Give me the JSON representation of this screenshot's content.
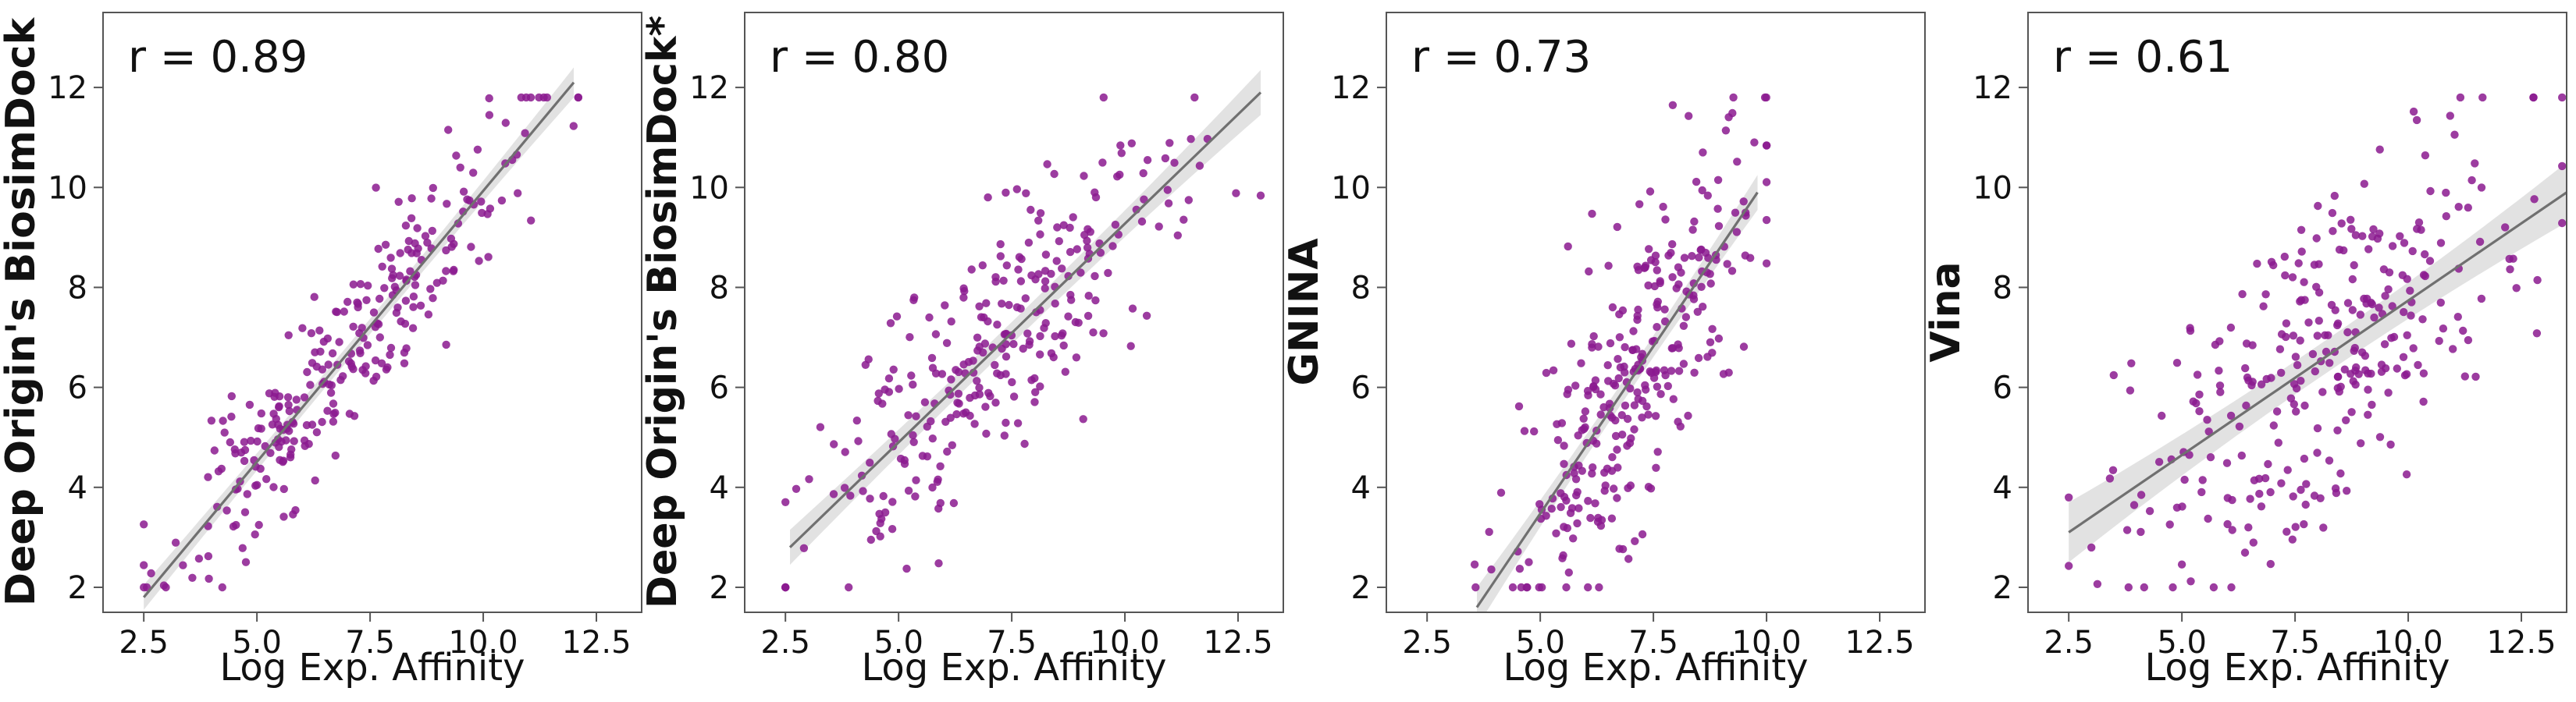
{
  "colors": {
    "point": "#8b1a8f",
    "fit_line": "#707070",
    "ci_band": "#d8d8d8",
    "axes": "#555555"
  },
  "chart_data": [
    {
      "type": "scatter",
      "panel": 0,
      "r_label": "r = 0.89",
      "xlabel": "Log Exp. Affinity",
      "ylabel": "Deep Origin's BiosimDock",
      "xlim": [
        1.6,
        13.5
      ],
      "ylim": [
        1.5,
        13.5
      ],
      "xticks": [
        2.5,
        5.0,
        7.5,
        10.0,
        12.5
      ],
      "xtick_labels": [
        "2.5",
        "5.0",
        "7.5",
        "10.0",
        "12.5"
      ],
      "yticks": [
        2,
        4,
        6,
        8,
        10,
        12
      ],
      "ytick_labels": [
        "2",
        "4",
        "6",
        "8",
        "10",
        "12"
      ],
      "fit": {
        "x": [
          2.5,
          12.0
        ],
        "y": [
          1.8,
          12.1
        ],
        "ci_half_width": [
          0.25,
          0.3
        ]
      },
      "generator": {
        "seed": 11,
        "n": 280,
        "xmin": 2.5,
        "xmax": 12.1,
        "xmean": 6.9,
        "xsd": 1.9,
        "slope": 1.08,
        "intercept": -0.9,
        "noise": 0.85,
        "ymin": 2.0,
        "ymax": 11.8
      }
    },
    {
      "type": "scatter",
      "panel": 1,
      "r_label": "r = 0.80",
      "xlabel": "Log Exp. Affinity",
      "ylabel": "Deep Origin's BiosimDock*",
      "xlim": [
        1.6,
        13.5
      ],
      "ylim": [
        1.5,
        13.5
      ],
      "xticks": [
        2.5,
        5.0,
        7.5,
        10.0,
        12.5
      ],
      "xtick_labels": [
        "2.5",
        "5.0",
        "7.5",
        "10.0",
        "12.5"
      ],
      "yticks": [
        2,
        4,
        6,
        8,
        10,
        12
      ],
      "ytick_labels": [
        "2",
        "4",
        "6",
        "8",
        "10",
        "12"
      ],
      "fit": {
        "x": [
          2.6,
          13.0
        ],
        "y": [
          2.8,
          11.9
        ],
        "ci_half_width": [
          0.35,
          0.45
        ]
      },
      "generator": {
        "seed": 23,
        "n": 280,
        "xmin": 2.5,
        "xmax": 13.0,
        "xmean": 7.0,
        "xsd": 2.0,
        "slope": 0.87,
        "intercept": 0.55,
        "noise": 1.25,
        "ymin": 2.0,
        "ymax": 11.8
      }
    },
    {
      "type": "scatter",
      "panel": 2,
      "r_label": "r = 0.73",
      "xlabel": "Log Exp. Affinity",
      "ylabel": "GNINA",
      "xlim": [
        1.6,
        13.5
      ],
      "ylim": [
        1.5,
        13.5
      ],
      "xticks": [
        2.5,
        5.0,
        7.5,
        10.0,
        12.5
      ],
      "xtick_labels": [
        "2.5",
        "5.0",
        "7.5",
        "10.0",
        "12.5"
      ],
      "yticks": [
        2,
        4,
        6,
        8,
        10,
        12
      ],
      "ytick_labels": [
        "2",
        "4",
        "6",
        "8",
        "10",
        "12"
      ],
      "fit": {
        "x": [
          3.6,
          9.8
        ],
        "y": [
          1.6,
          9.9
        ],
        "ci_half_width": [
          0.4,
          0.35
        ]
      },
      "generator": {
        "seed": 37,
        "n": 300,
        "xmin": 3.5,
        "xmax": 10.0,
        "xmean": 7.2,
        "xsd": 1.35,
        "slope": 1.34,
        "intercept": -3.2,
        "noise": 1.45,
        "ymin": 2.0,
        "ymax": 11.8
      }
    },
    {
      "type": "scatter",
      "panel": 3,
      "r_label": "r = 0.61",
      "xlabel": "Log Exp. Affinity",
      "ylabel": "Vina",
      "xlim": [
        1.6,
        13.5
      ],
      "ylim": [
        1.5,
        13.5
      ],
      "xticks": [
        2.5,
        5.0,
        7.5,
        10.0,
        12.5
      ],
      "xtick_labels": [
        "2.5",
        "5.0",
        "7.5",
        "10.0",
        "12.5"
      ],
      "yticks": [
        2,
        4,
        6,
        8,
        10,
        12
      ],
      "ytick_labels": [
        "2",
        "4",
        "6",
        "8",
        "10",
        "12"
      ],
      "fit": {
        "x": [
          2.5,
          13.5
        ],
        "y": [
          3.1,
          9.9
        ],
        "ci_half_width": [
          0.6,
          0.6
        ]
      },
      "generator": {
        "seed": 53,
        "n": 300,
        "xmin": 2.5,
        "xmax": 13.4,
        "xmean": 8.0,
        "xsd": 2.1,
        "slope": 0.62,
        "intercept": 1.55,
        "noise": 1.6,
        "ymin": 2.0,
        "ymax": 11.8
      }
    }
  ]
}
